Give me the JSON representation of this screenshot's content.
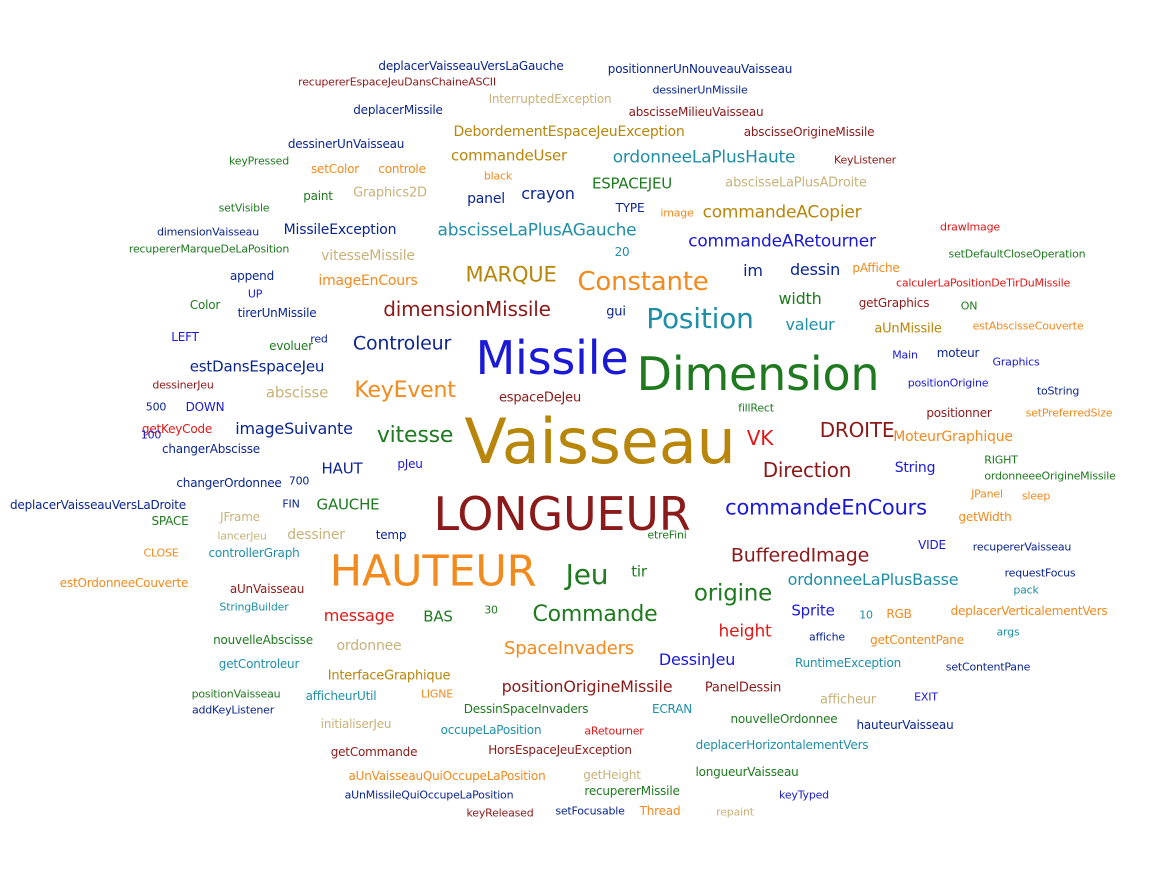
{
  "colors": {
    "blue": "#1a1ad6",
    "navy": "#0b2690",
    "darkred": "#8b1a1a",
    "red": "#e01818",
    "green": "#1f7a1f",
    "orange": "#f28a1e",
    "teal": "#1f8fa8",
    "gold": "#b8860b",
    "tan": "#c8b27a"
  },
  "words": [
    {
      "text": "Vaisseau",
      "color": "gold"
    },
    {
      "text": "LONGUEUR",
      "color": "darkred"
    },
    {
      "text": "Dimension",
      "color": "green"
    },
    {
      "text": "Missile",
      "color": "blue"
    },
    {
      "text": "HAUTEUR",
      "color": "orange"
    },
    {
      "text": "Position",
      "color": "teal"
    },
    {
      "text": "Constante",
      "color": "orange"
    },
    {
      "text": "Jeu",
      "color": "green"
    },
    {
      "text": "commandeEnCours",
      "color": "blue"
    },
    {
      "text": "KeyEvent",
      "color": "orange"
    },
    {
      "text": "Commande",
      "color": "green"
    },
    {
      "text": "origine",
      "color": "green"
    },
    {
      "text": "MARQUE",
      "color": "gold"
    },
    {
      "text": "dimensionMissile",
      "color": "darkred"
    },
    {
      "text": "vitesse",
      "color": "green"
    },
    {
      "text": "BufferedImage",
      "color": "darkred"
    },
    {
      "text": "DROITE",
      "color": "darkred"
    },
    {
      "text": "Direction",
      "color": "darkred"
    },
    {
      "text": "VK",
      "color": "red"
    },
    {
      "text": "Controleur",
      "color": "navy"
    },
    {
      "text": "commandeARetourner",
      "color": "blue"
    },
    {
      "text": "abscisseLaPlusAGauche",
      "color": "teal"
    },
    {
      "text": "ordonneeLaPlusHaute",
      "color": "teal"
    },
    {
      "text": "positionOrigineMissile",
      "color": "darkred"
    },
    {
      "text": "SpaceInvaders",
      "color": "orange"
    },
    {
      "text": "ordonneeLaPlusBasse",
      "color": "teal"
    },
    {
      "text": "commandeACopier",
      "color": "gold"
    },
    {
      "text": "ESPACEJEU",
      "color": "green"
    },
    {
      "text": "commandeUser",
      "color": "gold"
    },
    {
      "text": "DebordementEspaceJeuException",
      "color": "gold"
    },
    {
      "text": "height",
      "color": "red"
    },
    {
      "text": "message",
      "color": "red"
    },
    {
      "text": "HAUT",
      "color": "navy"
    },
    {
      "text": "imageSuivante",
      "color": "navy"
    },
    {
      "text": "estDansEspaceJeu",
      "color": "navy"
    },
    {
      "text": "DessinJeu",
      "color": "blue"
    },
    {
      "text": "BAS",
      "color": "green"
    },
    {
      "text": "GAUCHE",
      "color": "green"
    },
    {
      "text": "valeur",
      "color": "teal"
    },
    {
      "text": "width",
      "color": "green"
    },
    {
      "text": "dessin",
      "color": "navy"
    },
    {
      "text": "im",
      "color": "navy"
    },
    {
      "text": "crayon",
      "color": "navy"
    },
    {
      "text": "panel",
      "color": "navy"
    },
    {
      "text": "tir",
      "color": "green"
    },
    {
      "text": "Sprite",
      "color": "blue"
    },
    {
      "text": "MoteurGraphique",
      "color": "orange"
    },
    {
      "text": "espaceDeJeu",
      "color": "darkred"
    },
    {
      "text": "imageEnCours",
      "color": "orange"
    },
    {
      "text": "vitesseMissile",
      "color": "tan"
    },
    {
      "text": "MissileException",
      "color": "navy"
    },
    {
      "text": "PanelDessin",
      "color": "darkred"
    },
    {
      "text": "InterfaceGraphique",
      "color": "gold"
    },
    {
      "text": "DessinSpaceInvaders",
      "color": "green"
    },
    {
      "text": "HorsEspaceJeuException",
      "color": "darkred"
    },
    {
      "text": "deplacerHorizontalementVers",
      "color": "teal"
    },
    {
      "text": "abscisse",
      "color": "tan"
    },
    {
      "text": "ordonnee",
      "color": "tan"
    },
    {
      "text": "String",
      "color": "blue"
    },
    {
      "text": "aUnMissile",
      "color": "gold"
    },
    {
      "text": "positionner",
      "color": "darkred"
    },
    {
      "text": "changerAbscisse",
      "color": "navy"
    },
    {
      "text": "changerOrdonnee",
      "color": "navy"
    },
    {
      "text": "abscisseLaPlusADroite",
      "color": "tan"
    },
    {
      "text": "tirerUnMissile",
      "color": "navy"
    },
    {
      "text": "Graphics2D",
      "color": "tan"
    },
    {
      "text": "gui",
      "color": "navy"
    },
    {
      "text": "dessinerUnVaisseau",
      "color": "navy"
    },
    {
      "text": "ECRAN",
      "color": "teal"
    },
    {
      "text": "occupeLaPosition",
      "color": "teal"
    },
    {
      "text": "afficheurUtil",
      "color": "teal"
    },
    {
      "text": "deplacerVaisseauVersLaGauche",
      "color": "navy"
    },
    {
      "text": "positionnerUnNouveauVaisseau",
      "color": "navy"
    },
    {
      "text": "recupererEspaceJeuDansChaineASCII",
      "color": "darkred"
    },
    {
      "text": "dessinerUnMissile",
      "color": "navy"
    },
    {
      "text": "deplacerMissile",
      "color": "navy"
    },
    {
      "text": "InterruptedException",
      "color": "tan"
    },
    {
      "text": "abscisseMilieuVaisseau",
      "color": "darkred"
    },
    {
      "text": "abscisseOrigineMissile",
      "color": "darkred"
    },
    {
      "text": "keyPressed",
      "color": "green"
    },
    {
      "text": "setColor",
      "color": "orange"
    },
    {
      "text": "controle",
      "color": "orange"
    },
    {
      "text": "KeyListener",
      "color": "darkred"
    },
    {
      "text": "black",
      "color": "orange"
    },
    {
      "text": "setVisible",
      "color": "green"
    },
    {
      "text": "paint",
      "color": "green"
    },
    {
      "text": "TYPE",
      "color": "navy"
    },
    {
      "text": "image",
      "color": "orange"
    },
    {
      "text": "dimensionVaisseau",
      "color": "navy"
    },
    {
      "text": "recupererMarqueDeLaPosition",
      "color": "green"
    },
    {
      "text": "drawImage",
      "color": "red"
    },
    {
      "text": "setDefaultCloseOperation",
      "color": "green"
    },
    {
      "text": "20",
      "color": "teal"
    },
    {
      "text": "append",
      "color": "navy"
    },
    {
      "text": "UP",
      "color": "blue"
    },
    {
      "text": "Color",
      "color": "green"
    },
    {
      "text": "pAffiche",
      "color": "orange"
    },
    {
      "text": "calculerLaPositionDeTirDuMissile",
      "color": "red"
    },
    {
      "text": "getGraphics",
      "color": "darkred"
    },
    {
      "text": "ON",
      "color": "green"
    },
    {
      "text": "estAbscisseCouverte",
      "color": "orange"
    },
    {
      "text": "LEFT",
      "color": "blue"
    },
    {
      "text": "red",
      "color": "navy"
    },
    {
      "text": "evoluer",
      "color": "green"
    },
    {
      "text": "Main",
      "color": "blue"
    },
    {
      "text": "moteur",
      "color": "navy"
    },
    {
      "text": "Graphics",
      "color": "blue"
    },
    {
      "text": "dessinerJeu",
      "color": "darkred"
    },
    {
      "text": "positionOrigine",
      "color": "blue"
    },
    {
      "text": "toString",
      "color": "navy"
    },
    {
      "text": "500",
      "color": "navy"
    },
    {
      "text": "DOWN",
      "color": "blue"
    },
    {
      "text": "fillRect",
      "color": "green"
    },
    {
      "text": "setPreferredSize",
      "color": "orange"
    },
    {
      "text": "getKeyCode",
      "color": "red"
    },
    {
      "text": "100",
      "color": "blue"
    },
    {
      "text": "pJeu",
      "color": "blue"
    },
    {
      "text": "RIGHT",
      "color": "green"
    },
    {
      "text": "ordonneeeOrigineMissile",
      "color": "green"
    },
    {
      "text": "700",
      "color": "navy"
    },
    {
      "text": "deplacerVaisseauVersLaDroite",
      "color": "navy"
    },
    {
      "text": "FIN",
      "color": "navy"
    },
    {
      "text": "JPanel",
      "color": "orange"
    },
    {
      "text": "sleep",
      "color": "orange"
    },
    {
      "text": "SPACE",
      "color": "green"
    },
    {
      "text": "JFrame",
      "color": "tan"
    },
    {
      "text": "getWidth",
      "color": "orange"
    },
    {
      "text": "lancerJeu",
      "color": "tan"
    },
    {
      "text": "dessiner",
      "color": "tan"
    },
    {
      "text": "temp",
      "color": "navy"
    },
    {
      "text": "etreFini",
      "color": "green"
    },
    {
      "text": "VIDE",
      "color": "blue"
    },
    {
      "text": "recupererVaisseau",
      "color": "navy"
    },
    {
      "text": "CLOSE",
      "color": "orange"
    },
    {
      "text": "controllerGraph",
      "color": "teal"
    },
    {
      "text": "requestFocus",
      "color": "navy"
    },
    {
      "text": "estOrdonneeCouverte",
      "color": "orange"
    },
    {
      "text": "aUnVaisseau",
      "color": "darkred"
    },
    {
      "text": "pack",
      "color": "teal"
    },
    {
      "text": "StringBuilder",
      "color": "teal"
    },
    {
      "text": "30",
      "color": "green"
    },
    {
      "text": "10",
      "color": "teal"
    },
    {
      "text": "RGB",
      "color": "orange"
    },
    {
      "text": "deplacerVerticalementVers",
      "color": "orange"
    },
    {
      "text": "args",
      "color": "teal"
    },
    {
      "text": "nouvelleAbscisse",
      "color": "green"
    },
    {
      "text": "affiche",
      "color": "navy"
    },
    {
      "text": "getContentPane",
      "color": "orange"
    },
    {
      "text": "getControleur",
      "color": "teal"
    },
    {
      "text": "RuntimeException",
      "color": "teal"
    },
    {
      "text": "setContentPane",
      "color": "navy"
    },
    {
      "text": "positionVaisseau",
      "color": "green"
    },
    {
      "text": "LIGNE",
      "color": "orange"
    },
    {
      "text": "afficheur",
      "color": "tan"
    },
    {
      "text": "EXIT",
      "color": "blue"
    },
    {
      "text": "addKeyListener",
      "color": "navy"
    },
    {
      "text": "nouvelleOrdonnee",
      "color": "green"
    },
    {
      "text": "hauteurVaisseau",
      "color": "navy"
    },
    {
      "text": "initialiserJeu",
      "color": "tan"
    },
    {
      "text": "aRetourner",
      "color": "red"
    },
    {
      "text": "getCommande",
      "color": "darkred"
    },
    {
      "text": "aUnVaisseauQuiOccupeLaPosition",
      "color": "orange"
    },
    {
      "text": "getHeight",
      "color": "tan"
    },
    {
      "text": "longueurVaisseau",
      "color": "green"
    },
    {
      "text": "aUnMissileQuiOccupeLaPosition",
      "color": "navy"
    },
    {
      "text": "recupererMissile",
      "color": "green"
    },
    {
      "text": "keyTyped",
      "color": "blue"
    },
    {
      "text": "setFocusable",
      "color": "navy"
    },
    {
      "text": "Thread",
      "color": "orange"
    },
    {
      "text": "repaint",
      "color": "tan"
    },
    {
      "text": "keyReleased",
      "color": "darkred"
    }
  ]
}
